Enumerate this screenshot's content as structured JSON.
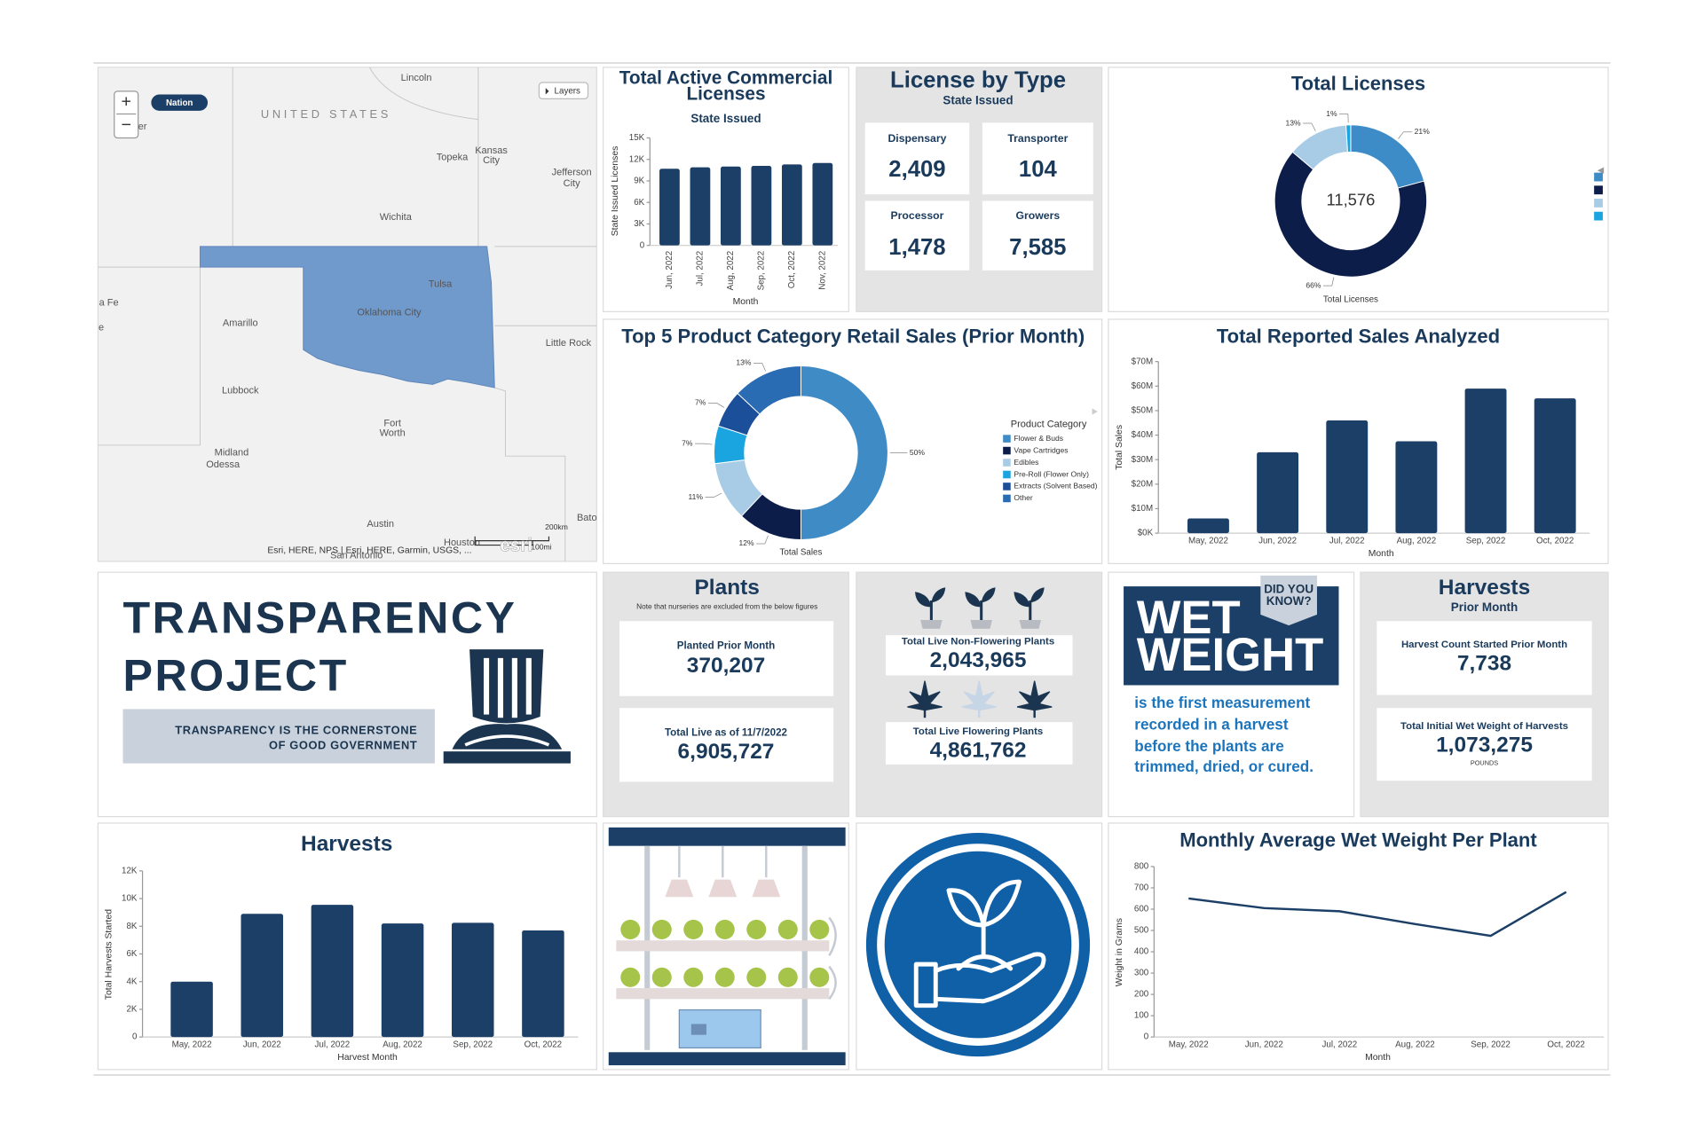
{
  "map": {
    "nation_button": "Nation",
    "layers_button": "Layers",
    "zoom_in": "+",
    "zoom_out": "−",
    "country_label": "UNITED STATES",
    "places": [
      "Lincoln",
      "Topeka",
      "Kansas",
      "City",
      "Jefferson",
      "City",
      "Wichita",
      "Tulsa",
      "Oklahoma City",
      "Amarillo",
      "Little Rock",
      "Lubbock",
      "Fort",
      "Worth",
      "Midland",
      "Odessa",
      "Austin",
      "a Fe",
      "e",
      "er",
      "Bato",
      "Houston",
      "San Antonio"
    ],
    "scale_km": "200km",
    "scale_mi": "100mi",
    "attribution": "Esri, HERE, NPS | Esri, HERE, Garmin, USGS, ...",
    "logo": "esri"
  },
  "license_by_type": {
    "title": "License by Type",
    "subtitle": "State Issued",
    "cards": [
      {
        "label": "Dispensary",
        "value": "2,409"
      },
      {
        "label": "Transporter",
        "value": "104"
      },
      {
        "label": "Processor",
        "value": "1,478"
      },
      {
        "label": "Growers",
        "value": "7,585"
      }
    ]
  },
  "transparency": {
    "title_line1": "TRANSPARENCY",
    "title_line2": "PROJECT",
    "tagline": [
      "TRANSPARENCY IS THE CORNERSTONE",
      "OF GOOD GOVERNMENT"
    ]
  },
  "plants": {
    "title": "Plants",
    "note": "Note that nurseries are excluded from the below figures",
    "planted_label": "Planted Prior Month",
    "planted_value": "370,207",
    "live_label": "Total Live as of 11/7/2022",
    "live_value": "6,905,727"
  },
  "live_plants": {
    "non_flowering_label": "Total Live Non-Flowering Plants",
    "non_flowering_value": "2,043,965",
    "flowering_label": "Total Live Flowering Plants",
    "flowering_value": "4,861,762"
  },
  "wet_weight": {
    "badge": [
      "DID YOU",
      "KNOW?"
    ],
    "headline": [
      "WET",
      "WEIGHT"
    ],
    "text": [
      "is the first measurement",
      "recorded in a harvest",
      "before the plants are",
      "trimmed, dried, or cured."
    ]
  },
  "harvests_prior_month": {
    "title": "Harvests",
    "subtitle": "Prior Month",
    "count_label": "Harvest Count Started Prior Month",
    "count_value": "7,738",
    "weight_label": "Total Initial Wet Weight of Harvests",
    "weight_value": "1,073,275",
    "weight_unit": "POUNDS"
  },
  "chart_data": [
    {
      "type": "bar",
      "title": "Total Active Commercial Licenses",
      "subtitle": "State Issued",
      "x_label": "Month",
      "y_label": "State Issued Licenses",
      "categories": [
        "Jun, 2022",
        "Jul, 2022",
        "Aug, 2022",
        "Sep, 2022",
        "Oct, 2022",
        "Nov, 2022"
      ],
      "values": [
        10700,
        10900,
        11000,
        11100,
        11300,
        11500
      ],
      "color": "#1b3f66",
      "ylim": [
        0,
        15000
      ],
      "yticks": [
        0,
        {
          "value": 3000,
          "label": "3K"
        },
        {
          "value": 6000,
          "label": "6K"
        },
        {
          "value": 9000,
          "label": "9K"
        },
        {
          "value": 12000,
          "label": "12K"
        },
        {
          "value": 15000,
          "label": "15K"
        }
      ]
    },
    {
      "type": "pie",
      "title": "Total Licenses",
      "center_label": "11,576",
      "label": "Total Licenses",
      "values": [
        21,
        66,
        13,
        1
      ],
      "value_labels": [
        "21%",
        "66%",
        "13%",
        "1%"
      ],
      "colors": [
        "#3d8cc8",
        "#0c1d4a",
        "#a8cce6",
        "#1aa5e0"
      ]
    },
    {
      "type": "pie",
      "title": "Top 5 Product Category Retail Sales (Prior Month)",
      "label": "Total Sales",
      "legend_title": "Product Category",
      "categories": [
        "Flower & Buds",
        "Vape Cartridges",
        "Edibles",
        "Pre-Roll (Flower Only)",
        "Extracts (Solvent Based)",
        "Other"
      ],
      "values": [
        50,
        12,
        11,
        7,
        7,
        13
      ],
      "value_labels": [
        "50%",
        "12%",
        "11%",
        "7%",
        "7%",
        "13%"
      ],
      "colors": [
        "#3f8bc6",
        "#0c1d4a",
        "#a8cce6",
        "#1aa5e0",
        "#1c4f99",
        "#2a6cb3"
      ]
    },
    {
      "type": "bar",
      "title": "Total Reported Sales Analyzed",
      "x_label": "Month",
      "y_label": "Total Sales",
      "categories": [
        "May, 2022",
        "Jun, 2022",
        "Jul, 2022",
        "Aug, 2022",
        "Sep, 2022",
        "Oct, 2022"
      ],
      "values": [
        6000000,
        33000000,
        46000000,
        37500000,
        59000000,
        55000000
      ],
      "color": "#1b3f66",
      "ylim": [
        0,
        70000000
      ],
      "yticks": [
        {
          "value": 0,
          "label": "$0K"
        },
        {
          "value": 10000000,
          "label": "$10M"
        },
        {
          "value": 20000000,
          "label": "$20M"
        },
        {
          "value": 30000000,
          "label": "$30M"
        },
        {
          "value": 40000000,
          "label": "$40M"
        },
        {
          "value": 50000000,
          "label": "$50M"
        },
        {
          "value": 60000000,
          "label": "$60M"
        },
        {
          "value": 70000000,
          "label": "$70M"
        }
      ]
    },
    {
      "type": "bar",
      "title": "Harvests",
      "x_label": "Harvest Month",
      "y_label": "Total Harvests Started",
      "categories": [
        "May, 2022",
        "Jun, 2022",
        "Jul, 2022",
        "Aug, 2022",
        "Sep, 2022",
        "Oct, 2022"
      ],
      "values": [
        4000,
        8900,
        9550,
        8200,
        8250,
        7700
      ],
      "color": "#1b3f66",
      "ylim": [
        0,
        12000
      ],
      "yticks": [
        0,
        {
          "value": 2000,
          "label": "2K"
        },
        {
          "value": 4000,
          "label": "4K"
        },
        {
          "value": 6000,
          "label": "6K"
        },
        {
          "value": 8000,
          "label": "8K"
        },
        {
          "value": 10000,
          "label": "10K"
        },
        {
          "value": 12000,
          "label": "12K"
        }
      ]
    },
    {
      "type": "line",
      "title": "Monthly Average Wet Weight Per Plant",
      "x_label": "Month",
      "y_label": "Weight in Grams",
      "categories": [
        "May, 2022",
        "Jun, 2022",
        "Jul, 2022",
        "Aug, 2022",
        "Sep, 2022",
        "Oct, 2022"
      ],
      "values": [
        650,
        605,
        590,
        530,
        475,
        680
      ],
      "color": "#1b3f66",
      "ylim": [
        0,
        800
      ],
      "yticks": [
        0,
        100,
        200,
        300,
        400,
        500,
        600,
        700,
        800
      ]
    }
  ]
}
